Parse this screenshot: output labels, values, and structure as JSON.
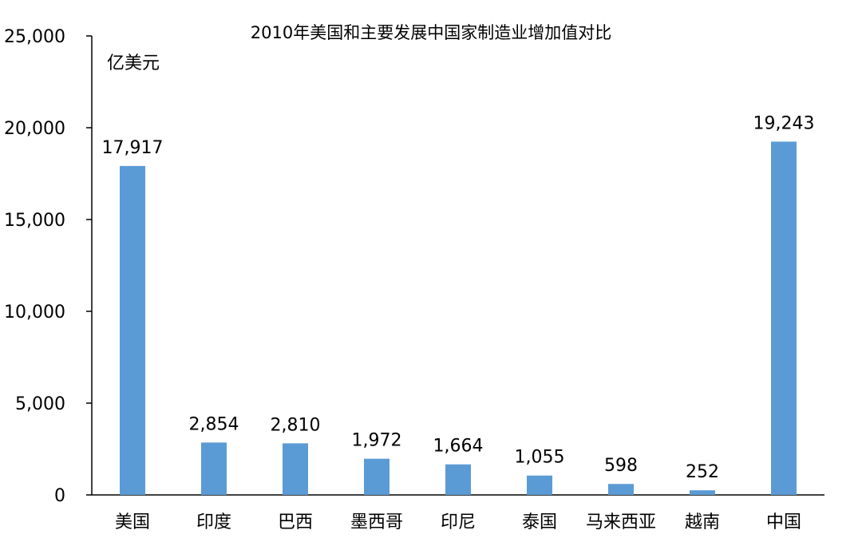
{
  "chart_data": {
    "type": "bar",
    "title": "2010年美国和主要发展中国家制造业增加值对比",
    "unit": "亿美元",
    "categories": [
      "美国",
      "印度",
      "巴西",
      "墨西哥",
      "印尼",
      "泰国",
      "马来西亚",
      "越南",
      "中国"
    ],
    "values": [
      17917,
      2854,
      2810,
      1972,
      1664,
      1055,
      598,
      252,
      19243
    ],
    "value_labels": [
      "17,917",
      "2,854",
      "2,810",
      "1,972",
      "1,664",
      "1,055",
      "598",
      "252",
      "19,243"
    ],
    "y_ticks": [
      0,
      5000,
      10000,
      15000,
      20000,
      25000
    ],
    "y_tick_labels": [
      "0",
      "5,000",
      "10,000",
      "15,000",
      "20,000",
      "25,000"
    ],
    "ylim": [
      0,
      25000
    ],
    "xlabel": "",
    "ylabel": "",
    "grid": false,
    "legend": "none",
    "bar_color": "#5b9bd5",
    "axis_color": "#000000"
  }
}
